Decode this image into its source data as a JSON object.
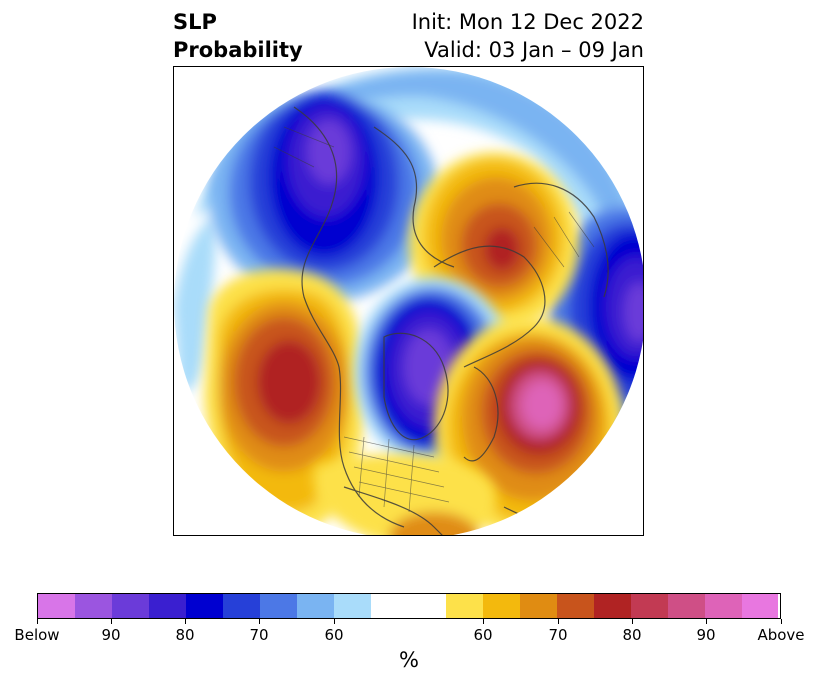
{
  "title": {
    "left_line1": "SLP",
    "left_line2": "Probability",
    "right_line1": "Init: Mon 12 Dec 2022",
    "right_line2": "Valid: 03 Jan – 09 Jan"
  },
  "colorbar": {
    "colors": [
      "#d875e8",
      "#9b55e0",
      "#6b3bd9",
      "#3a1fd0",
      "#0000d0",
      "#2640d8",
      "#4c78e6",
      "#7ab4f2",
      "#a9dcfa",
      "#ffffff",
      "#ffffff",
      "#fde14a",
      "#f3b90d",
      "#e08c12",
      "#c8541c",
      "#b02323",
      "#c23a53",
      "#cf4f86",
      "#de63b8",
      "#e877e0"
    ],
    "tick_labels": [
      "Below",
      "90",
      "80",
      "70",
      "60",
      "60",
      "70",
      "80",
      "90",
      "Above"
    ],
    "unit_label": "%"
  },
  "map": {
    "projection": "north-polar-stereographic",
    "features": [
      "coastlines",
      "country-borders",
      "us-state-borders"
    ],
    "anomalies": [
      {
        "region": "Gulf of Alaska / Bering",
        "category": "below",
        "max_prob": "90"
      },
      {
        "region": "Scandinavia / Siberia",
        "category": "above",
        "max_prob": "80"
      },
      {
        "region": "North Pacific (west of Canada)",
        "category": "above",
        "max_prob": "80"
      },
      {
        "region": "Hudson Bay / Central Canada",
        "category": "below",
        "max_prob": "90"
      },
      {
        "region": "North Atlantic",
        "category": "above",
        "max_prob": "90"
      },
      {
        "region": "Eastern Europe / Mediterranean",
        "category": "below",
        "max_prob": "90"
      }
    ]
  }
}
